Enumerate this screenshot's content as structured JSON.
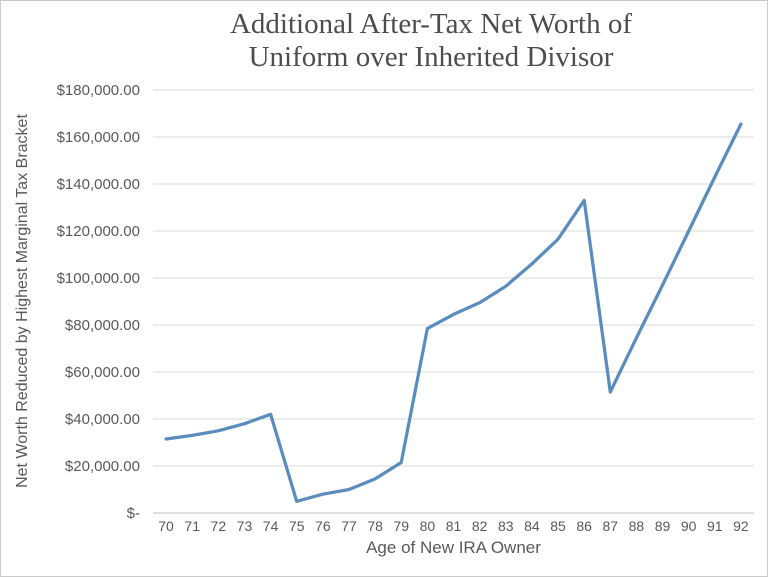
{
  "chart": {
    "title_lines": [
      "Additional After-Tax Net Worth of",
      "Uniform over Inherited Divisor"
    ],
    "x_axis_title": "Age of New IRA Owner",
    "y_axis_title": "Net Worth Reduced by Highest Marginal Tax Bracket"
  },
  "chart_data": {
    "type": "line",
    "title": "Additional After-Tax Net Worth of Uniform over Inherited Divisor",
    "xlabel": "Age of New IRA Owner",
    "ylabel": "Net Worth Reduced by Highest Marginal Tax Bracket",
    "categories": [
      70,
      71,
      72,
      73,
      74,
      75,
      76,
      77,
      78,
      79,
      80,
      81,
      82,
      83,
      84,
      85,
      86,
      87,
      88,
      89,
      90,
      91,
      92
    ],
    "values": [
      31500,
      33000,
      35000,
      38000,
      42000,
      5000,
      8000,
      10000,
      14500,
      21500,
      78500,
      84500,
      89500,
      96500,
      106000,
      116500,
      133000,
      51500,
      74500,
      97000,
      120000,
      143000,
      165500
    ],
    "ylim": [
      0,
      180000
    ],
    "y_tick_interval": 20000,
    "y_tick_labels": [
      "$-",
      "$20,000.00",
      "$40,000.00",
      "$60,000.00",
      "$80,000.00",
      "$100,000.00",
      "$120,000.00",
      "$140,000.00",
      "$160,000.00",
      "$180,000.00"
    ],
    "grid": "horizontal",
    "legend": "none",
    "colors": {
      "line": "#5a8cbe",
      "gridline": "#d9d9d9",
      "axis_line": "#bfbfbf",
      "tick_text": "#595959",
      "title_text": "#4d4d4d"
    }
  }
}
